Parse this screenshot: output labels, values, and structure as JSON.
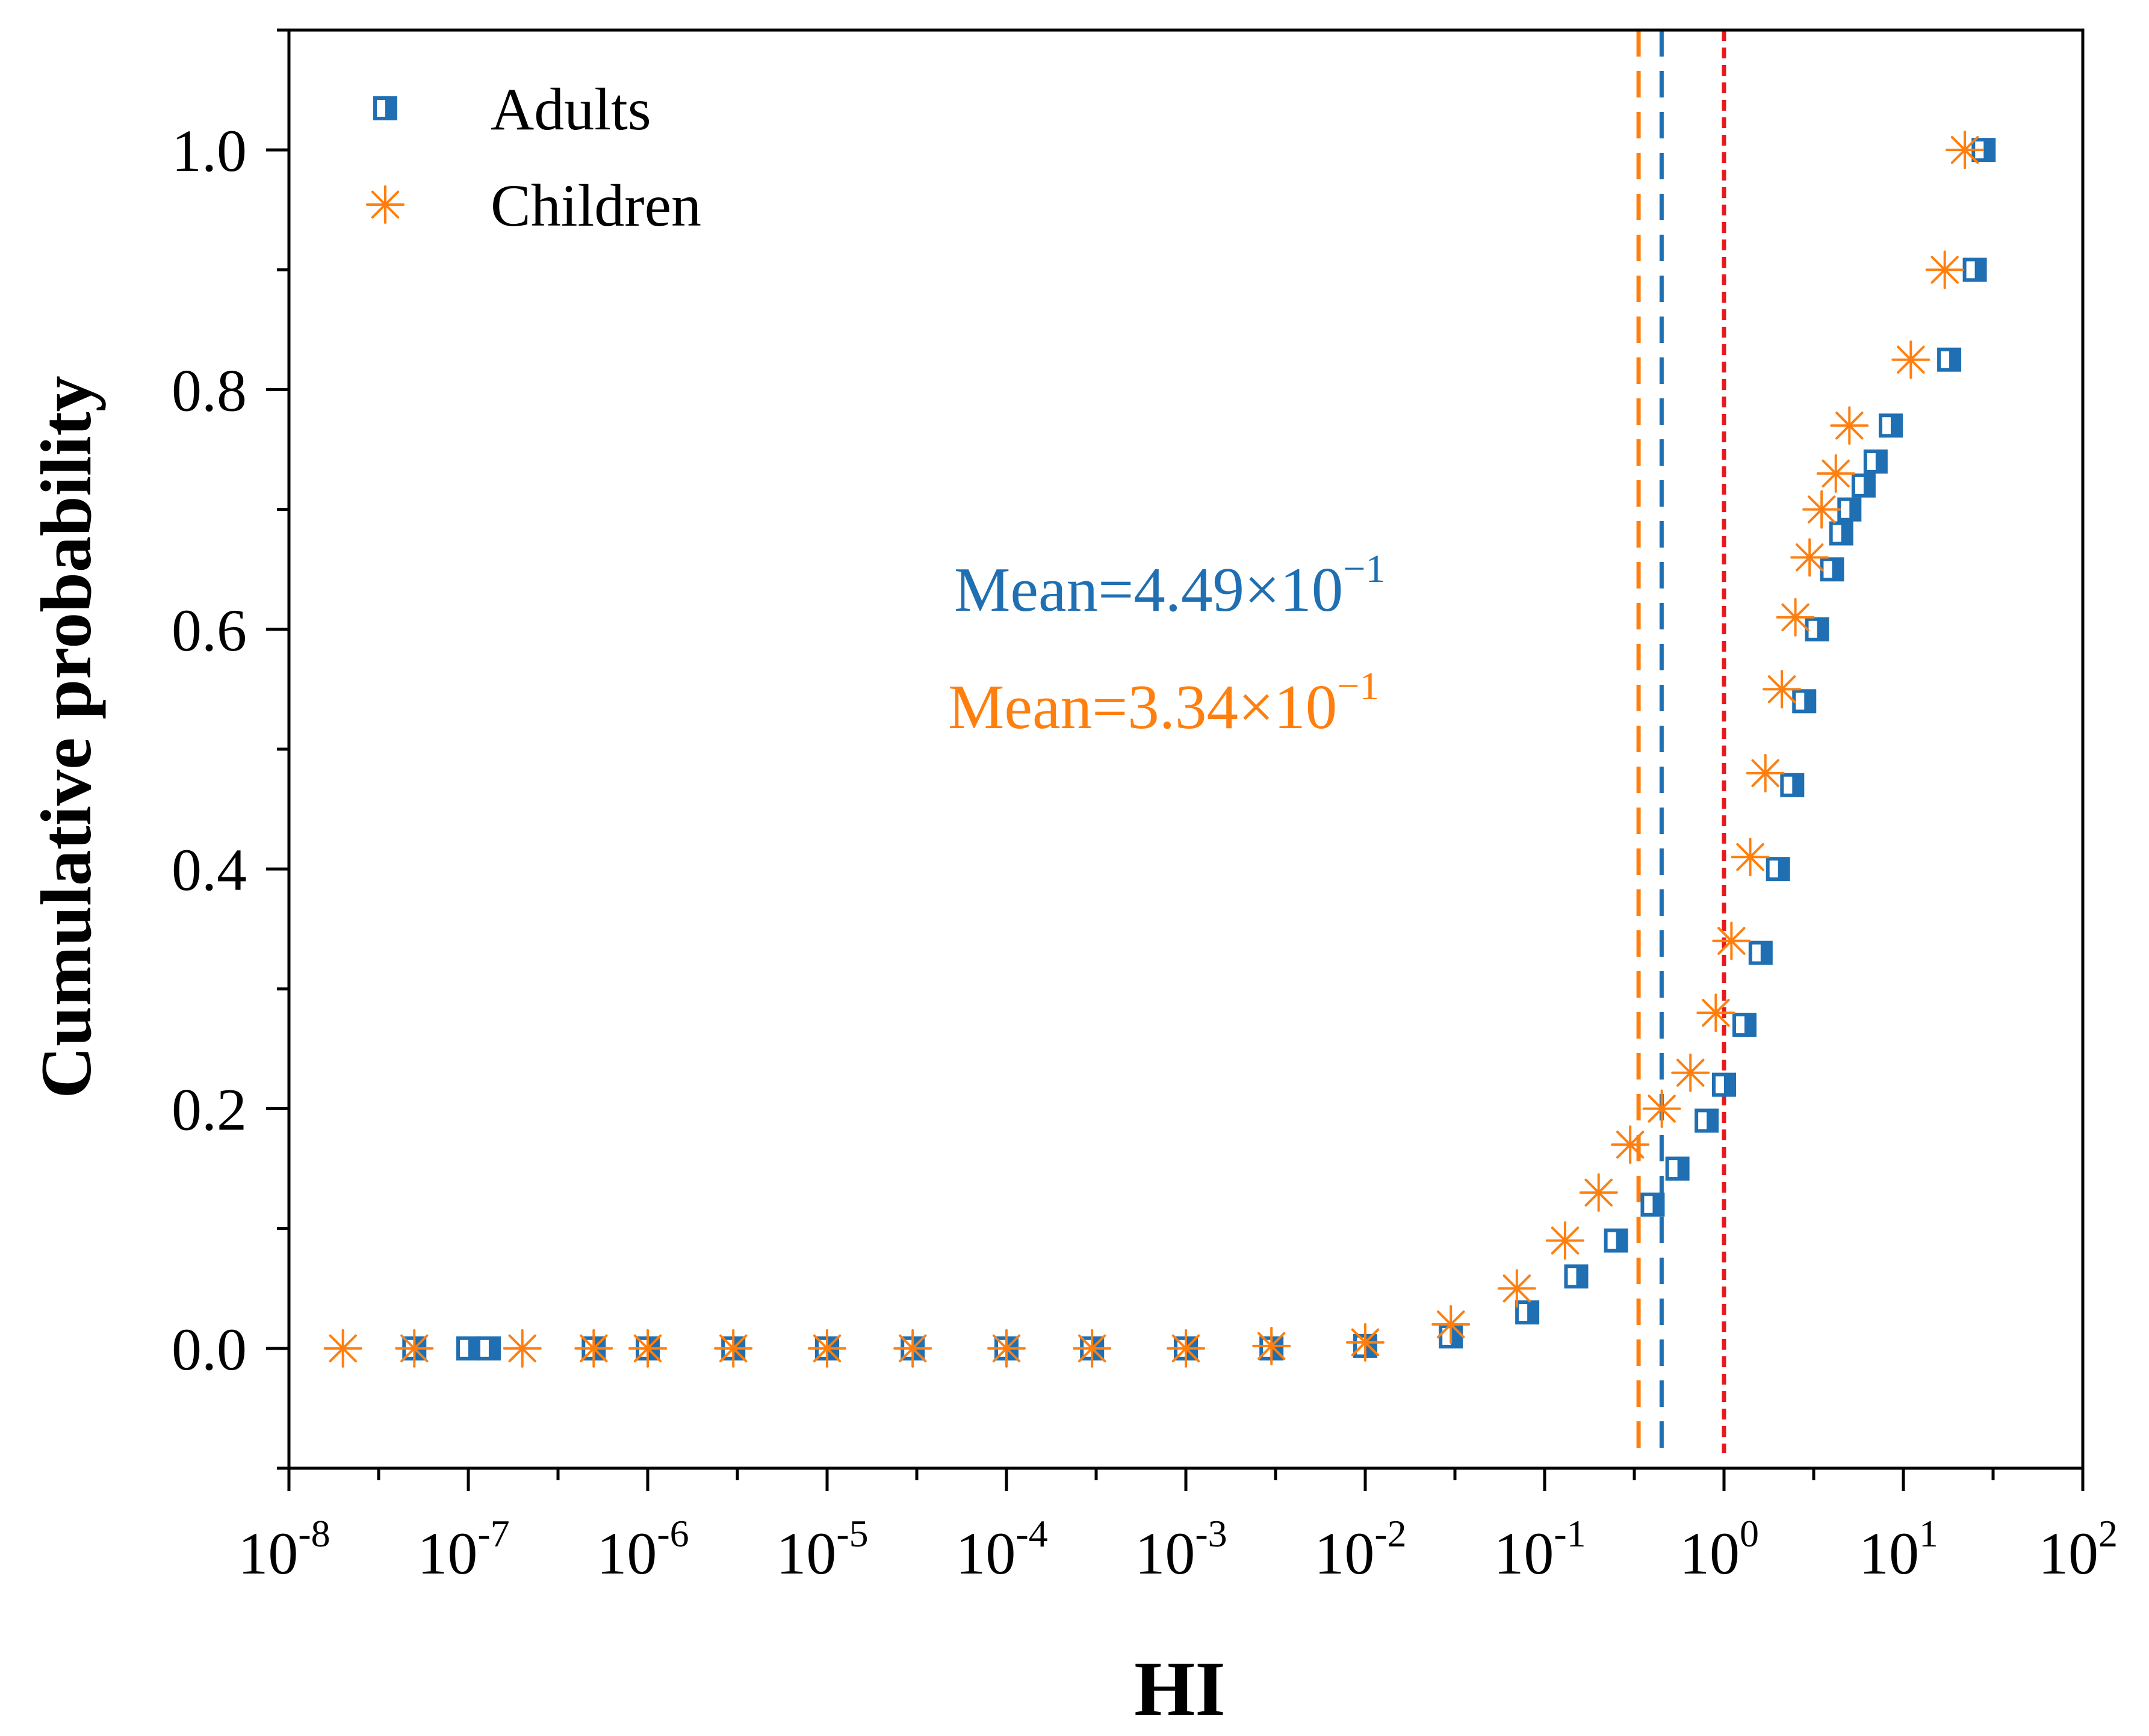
{
  "chart_data": {
    "type": "scatter",
    "title": "",
    "xlabel": "HI",
    "ylabel": "Cumulative probability",
    "xscale": "log",
    "xlim": [
      1e-08,
      100
    ],
    "ylim": [
      -0.1,
      1.1
    ],
    "x_ticks": [
      {
        "base": "10",
        "exp": "-8",
        "value": 1e-08
      },
      {
        "base": "10",
        "exp": "-7",
        "value": 1e-07
      },
      {
        "base": "10",
        "exp": "-6",
        "value": 1e-06
      },
      {
        "base": "10",
        "exp": "-5",
        "value": 1e-05
      },
      {
        "base": "10",
        "exp": "-4",
        "value": 0.0001
      },
      {
        "base": "10",
        "exp": "-3",
        "value": 0.001
      },
      {
        "base": "10",
        "exp": "-2",
        "value": 0.01
      },
      {
        "base": "10",
        "exp": "-1",
        "value": 0.1
      },
      {
        "base": "10",
        "exp": "0",
        "value": 1
      },
      {
        "base": "10",
        "exp": "1",
        "value": 10
      },
      {
        "base": "10",
        "exp": "2",
        "value": 100
      }
    ],
    "y_ticks": [
      "0.0",
      "0.2",
      "0.4",
      "0.6",
      "0.8",
      "1.0"
    ],
    "grid": false,
    "legend_position": "top-left",
    "series": [
      {
        "name": "Adults",
        "marker": "half-filled-square",
        "color": "#1f6fb2",
        "x": [
          5e-08,
          1e-07,
          1.3e-07,
          5e-07,
          1e-06,
          3e-06,
          1e-05,
          3e-05,
          0.0001,
          0.0003,
          0.001,
          0.003,
          0.01,
          0.03,
          0.08,
          0.15,
          0.25,
          0.4,
          0.55,
          0.8,
          1.0,
          1.3,
          1.6,
          2.0,
          2.4,
          2.8,
          3.3,
          4.0,
          4.5,
          5.0,
          6.0,
          7.0,
          8.5,
          18,
          25,
          28
        ],
        "y": [
          0,
          0,
          0,
          0,
          0,
          0,
          0,
          0,
          0,
          0,
          0,
          0,
          0.002,
          0.01,
          0.03,
          0.06,
          0.09,
          0.12,
          0.15,
          0.19,
          0.22,
          0.27,
          0.33,
          0.4,
          0.47,
          0.54,
          0.6,
          0.65,
          0.68,
          0.7,
          0.72,
          0.74,
          0.77,
          0.825,
          0.9,
          1.0
        ]
      },
      {
        "name": "Children",
        "marker": "asterisk",
        "color": "#ff7f0e",
        "x": [
          2e-08,
          5e-08,
          2e-07,
          5e-07,
          1e-06,
          3e-06,
          1e-05,
          3e-05,
          0.0001,
          0.0003,
          0.001,
          0.003,
          0.01,
          0.03,
          0.07,
          0.13,
          0.2,
          0.3,
          0.45,
          0.65,
          0.9,
          1.1,
          1.4,
          1.7,
          2.1,
          2.5,
          3.0,
          3.5,
          4.2,
          5.0,
          11,
          17,
          22
        ],
        "y": [
          0,
          0,
          0,
          0,
          0,
          0,
          0,
          0,
          0,
          0,
          0,
          0.002,
          0.005,
          0.02,
          0.05,
          0.09,
          0.13,
          0.17,
          0.2,
          0.23,
          0.28,
          0.34,
          0.41,
          0.48,
          0.55,
          0.61,
          0.66,
          0.7,
          0.73,
          0.77,
          0.825,
          0.9,
          1.0
        ]
      }
    ],
    "reference_lines": [
      {
        "x": 0.449,
        "color": "#1f6fb2",
        "style": "dashed"
      },
      {
        "x": 0.334,
        "color": "#ff7f0e",
        "style": "dashed"
      },
      {
        "x": 1,
        "color": "#e8191c",
        "style": "dotted"
      }
    ],
    "annotations": [
      {
        "text": "Mean=4.49×10",
        "sup": "−1",
        "color": "#1f6fb2"
      },
      {
        "text": "Mean=3.34×10",
        "sup": "−1",
        "color": "#ff7f0e"
      }
    ]
  }
}
